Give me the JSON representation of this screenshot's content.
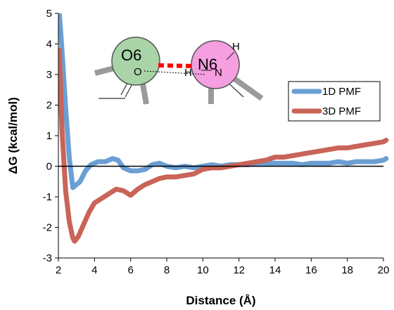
{
  "chart_data": {
    "type": "line",
    "xlabel": "Distance (Å)",
    "ylabel": "ΔG (kcal/mol)",
    "xlim": [
      2,
      20
    ],
    "ylim": [
      -3,
      5
    ],
    "x_ticks": [
      "2",
      "4",
      "6",
      "8",
      "10",
      "12",
      "14",
      "16",
      "18",
      "20"
    ],
    "y_ticks": [
      "-3",
      "-2",
      "-1",
      "0",
      "1",
      "2",
      "3",
      "4",
      "5"
    ],
    "legend_position": "top-right",
    "zero_line": true,
    "series": [
      {
        "name": "1D PMF",
        "color": "#6a9fd4",
        "x": [
          2.05,
          2.2,
          2.4,
          2.6,
          2.8,
          3.0,
          3.2,
          3.5,
          3.8,
          4.2,
          4.6,
          5.0,
          5.3,
          5.6,
          6.0,
          6.4,
          6.8,
          7.2,
          7.6,
          8.0,
          8.5,
          9.0,
          9.5,
          10.0,
          10.5,
          11.0,
          11.5,
          12.0,
          12.5,
          13.0,
          13.5,
          14.0,
          14.5,
          15.0,
          15.5,
          16.0,
          16.5,
          17.0,
          17.5,
          18.0,
          18.5,
          19.0,
          19.5,
          20.0,
          20.15
        ],
        "y": [
          5.0,
          3.8,
          1.9,
          0.3,
          -0.7,
          -0.6,
          -0.5,
          -0.15,
          0.05,
          0.15,
          0.15,
          0.25,
          0.2,
          -0.05,
          -0.15,
          -0.15,
          -0.1,
          0.05,
          0.1,
          0.0,
          -0.05,
          0.0,
          -0.05,
          0.0,
          0.05,
          0.0,
          0.05,
          0.05,
          0.05,
          0.1,
          0.1,
          0.1,
          0.1,
          0.1,
          0.05,
          0.1,
          0.1,
          0.1,
          0.15,
          0.1,
          0.15,
          0.15,
          0.15,
          0.2,
          0.25
        ]
      },
      {
        "name": "3D PMF",
        "color": "#c96458",
        "x": [
          2.05,
          2.2,
          2.4,
          2.6,
          2.8,
          2.9,
          3.1,
          3.4,
          3.7,
          4.0,
          4.4,
          4.8,
          5.2,
          5.6,
          6.0,
          6.4,
          6.8,
          7.2,
          7.6,
          8.0,
          8.5,
          9.0,
          9.5,
          10.0,
          10.5,
          11.0,
          11.5,
          12.0,
          12.5,
          13.0,
          13.5,
          14.0,
          14.5,
          15.0,
          15.5,
          16.0,
          16.5,
          17.0,
          17.5,
          18.0,
          18.5,
          19.0,
          19.5,
          20.0,
          20.15
        ],
        "y": [
          3.8,
          1.2,
          -0.8,
          -1.8,
          -2.35,
          -2.45,
          -2.3,
          -1.9,
          -1.5,
          -1.2,
          -1.05,
          -0.9,
          -0.75,
          -0.8,
          -0.95,
          -0.75,
          -0.6,
          -0.5,
          -0.4,
          -0.35,
          -0.35,
          -0.3,
          -0.25,
          -0.1,
          -0.05,
          -0.05,
          0.0,
          0.05,
          0.1,
          0.15,
          0.2,
          0.3,
          0.3,
          0.35,
          0.4,
          0.45,
          0.5,
          0.55,
          0.6,
          0.6,
          0.65,
          0.7,
          0.75,
          0.8,
          0.85
        ]
      }
    ]
  },
  "inset": {
    "left_atom": "O6",
    "left_sub": "O",
    "right_atom": "N6",
    "right_sub": "N",
    "h_top": "H",
    "h_mid": "H",
    "left_color": "#a8d4a8",
    "right_color": "#f59ee0",
    "bond_color": "#ff0000"
  }
}
